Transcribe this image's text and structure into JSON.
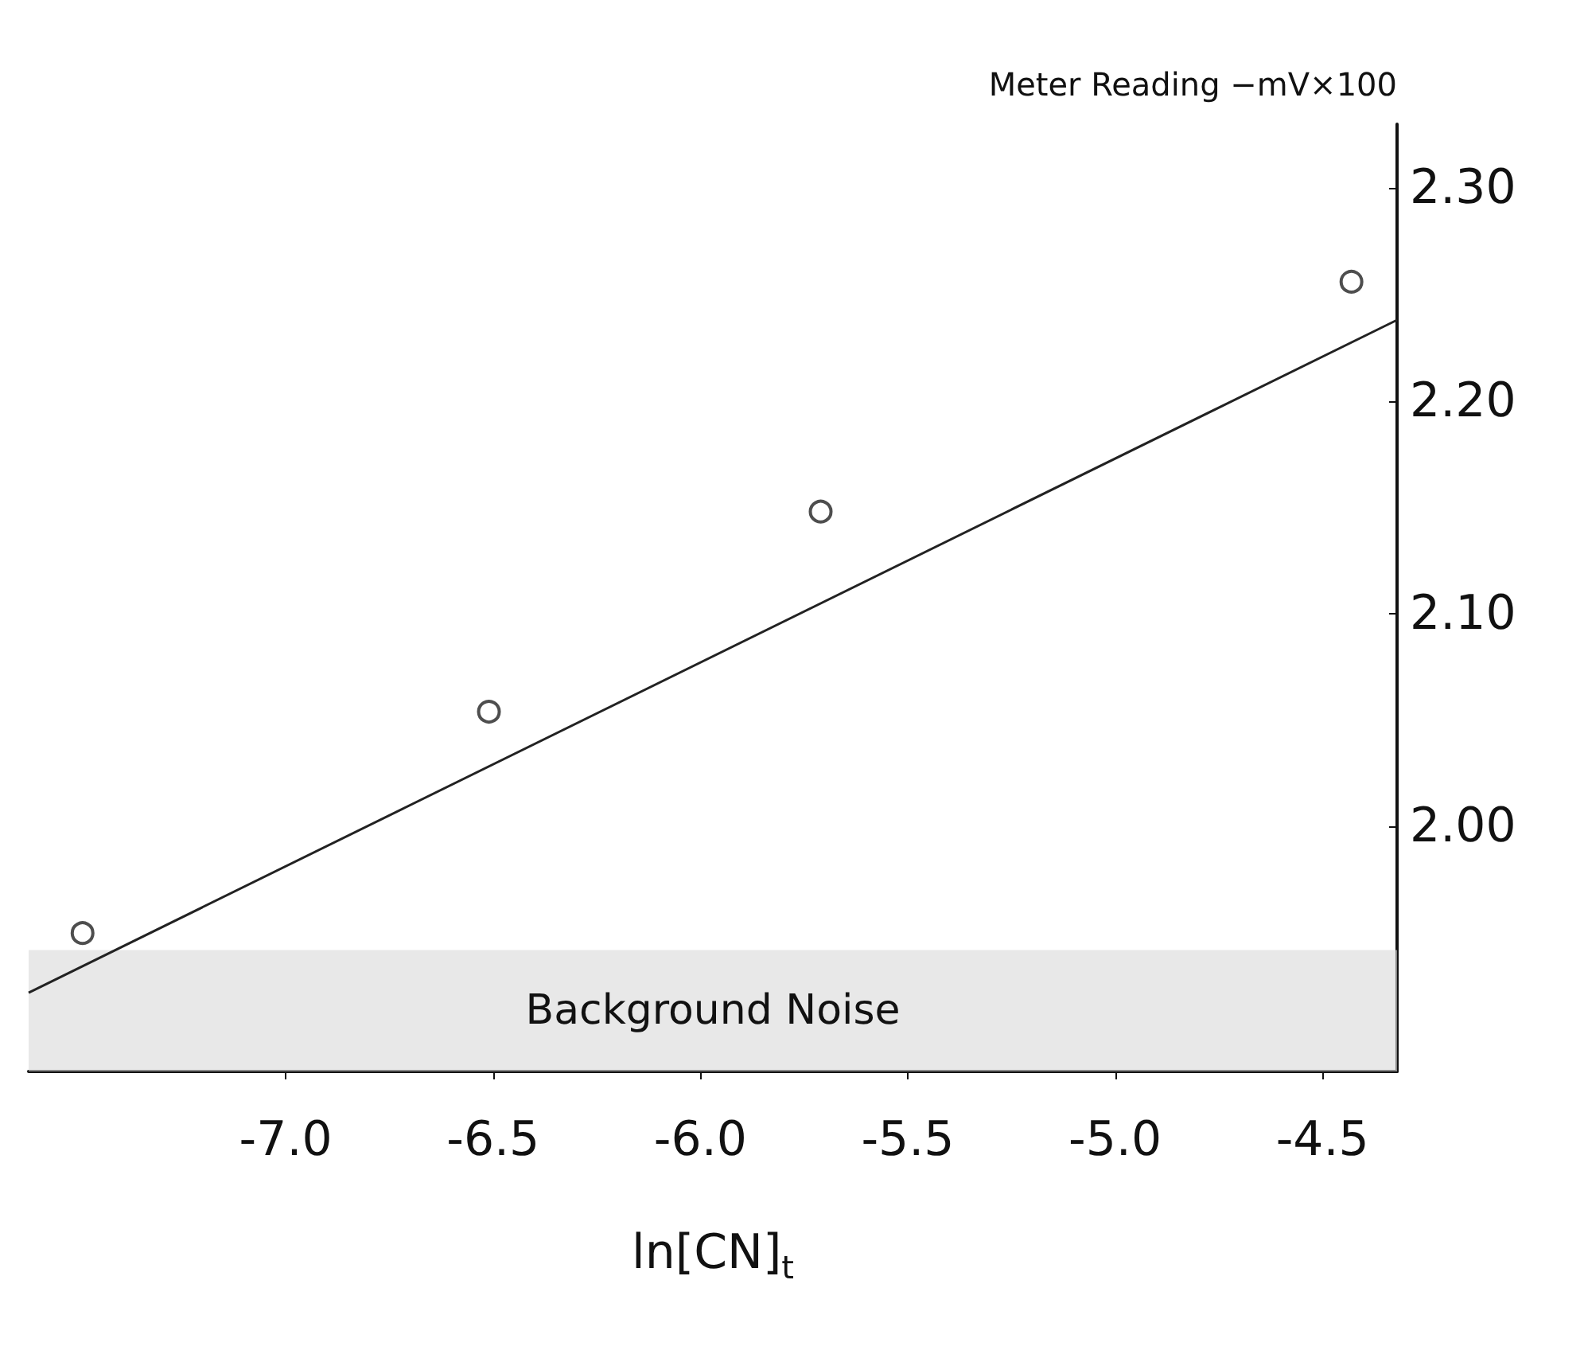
{
  "chart_data": {
    "type": "scatter",
    "xlabel": "ln[CN]$_{t}$",
    "ylabel": "Meter Reading −mV×100",
    "xlim": [
      -7.62,
      -4.32
    ],
    "ylim": [
      1.885,
      2.33
    ],
    "xticks": [
      {
        "value": -7.0,
        "label": "-7.0"
      },
      {
        "value": -6.5,
        "label": "-6.5"
      },
      {
        "value": -6.0,
        "label": "-6.0"
      },
      {
        "value": -5.5,
        "label": "-5.5"
      },
      {
        "value": -5.0,
        "label": "-5.0"
      },
      {
        "value": -4.5,
        "label": "-4.5"
      }
    ],
    "yticks": [
      {
        "value": 2.0,
        "label": "2.00"
      },
      {
        "value": 2.1,
        "label": "2.10"
      },
      {
        "value": 2.2,
        "label": "2.20"
      },
      {
        "value": 2.3,
        "label": "2.30"
      }
    ],
    "series": [
      {
        "type": "scatter",
        "color": "#222222",
        "marker": "circle",
        "x": [
          -7.49,
          -6.51,
          -5.71,
          -4.43
        ],
        "values": [
          1.95,
          2.054,
          2.148,
          2.256
        ]
      },
      {
        "type": "line",
        "color": "#222222",
        "marker": "none",
        "line_style": "solid",
        "x": [
          -7.62,
          -4.32
        ],
        "values": [
          1.922,
          2.238
        ]
      }
    ],
    "bands": [
      {
        "axis": "y",
        "from": 1.885,
        "to": 1.942,
        "label": "Background Noise",
        "color": "#d8d8d8"
      }
    ],
    "grid": false
  }
}
